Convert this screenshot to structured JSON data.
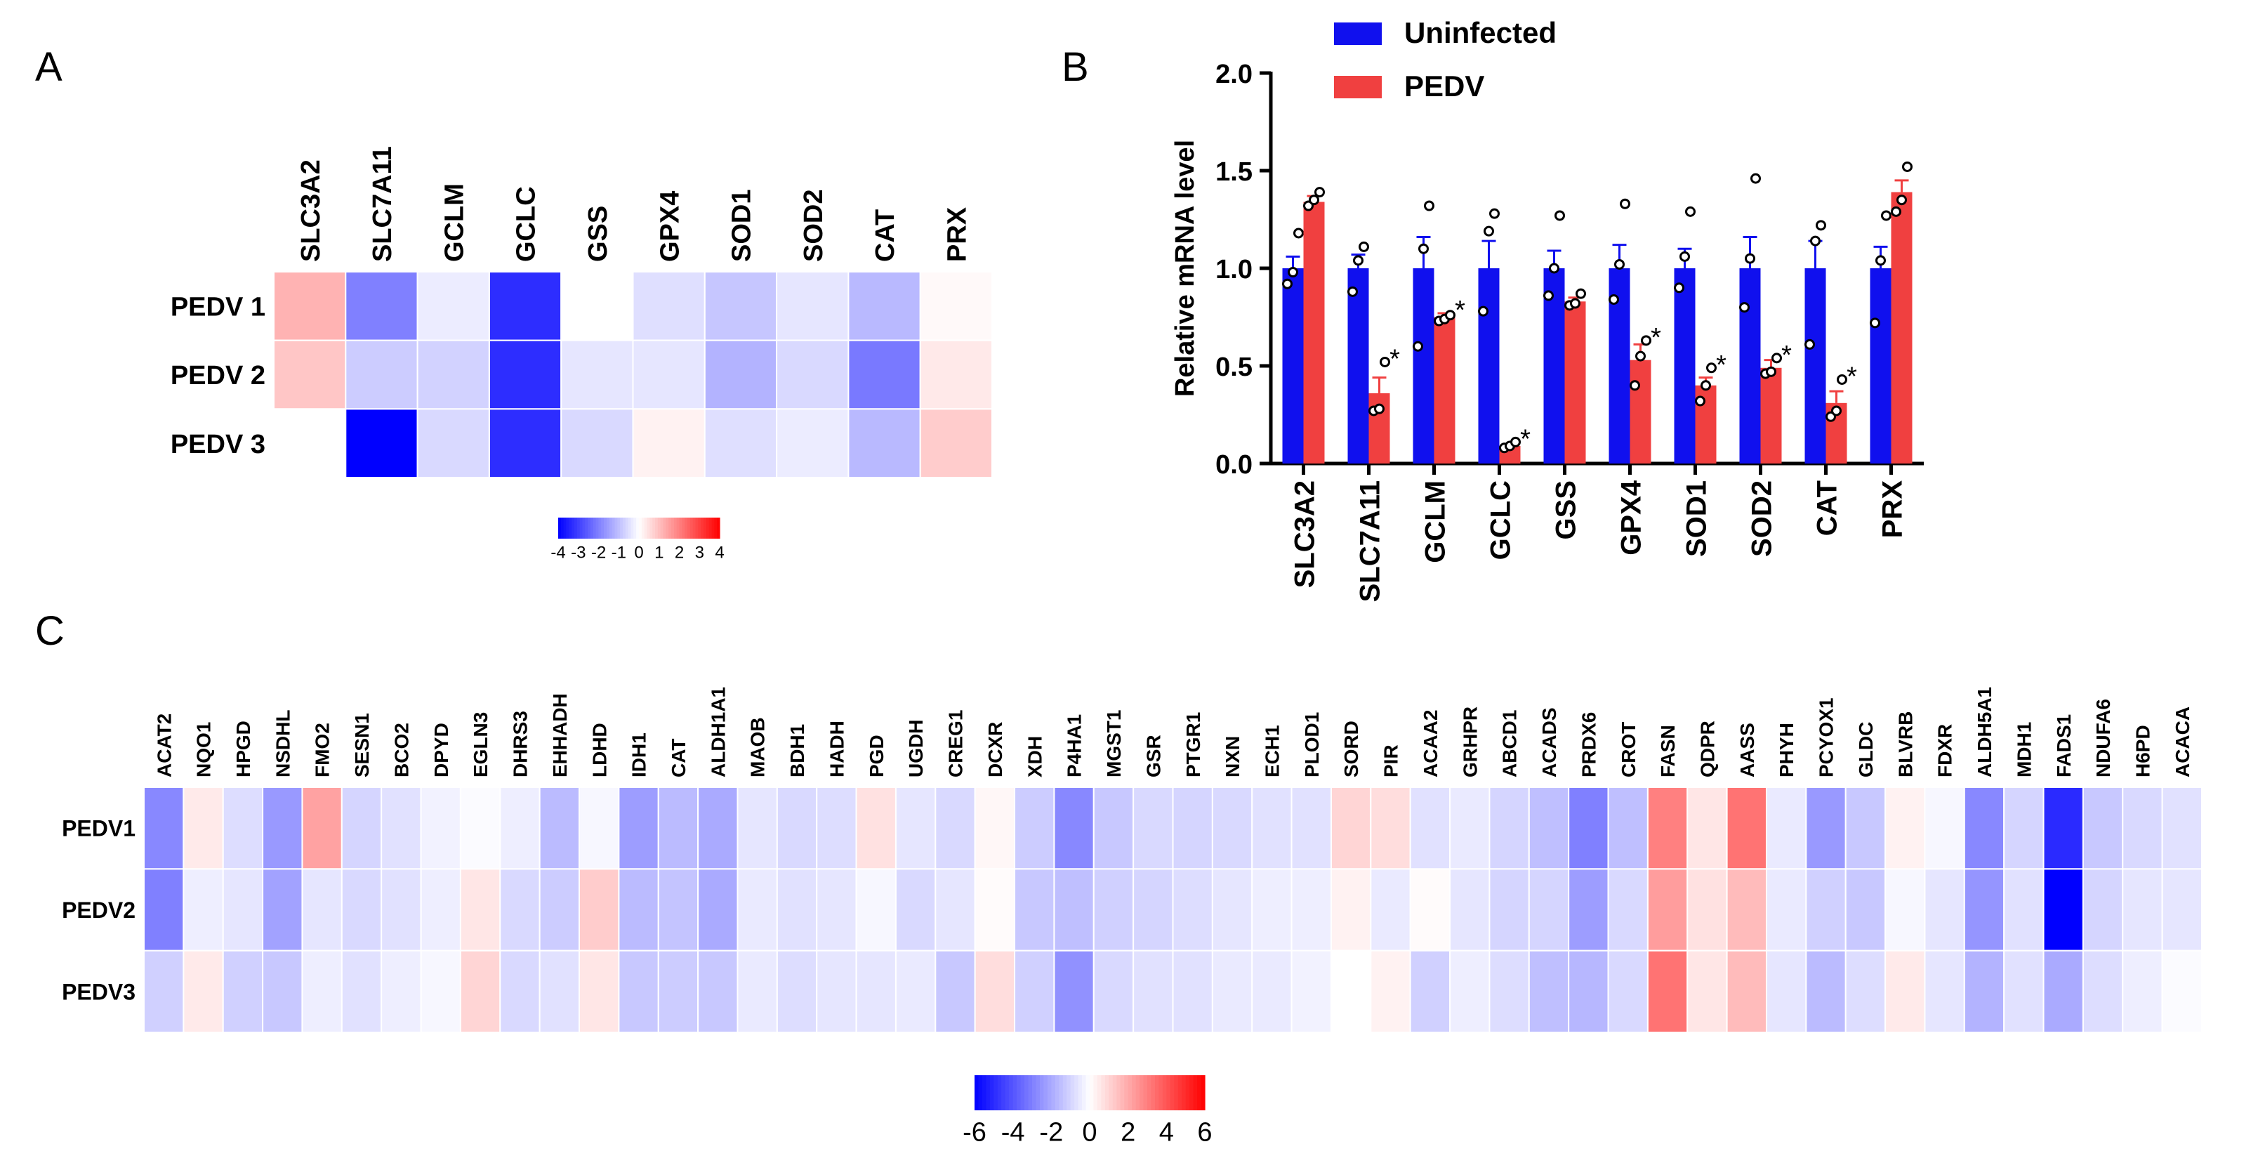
{
  "chart_data": [
    {
      "panel": "A",
      "type": "heatmap",
      "columns": [
        "SLC3A2",
        "SLC7A11",
        "GCLM",
        "GCLC",
        "GSS",
        "GPX4",
        "SOD1",
        "SOD2",
        "CAT",
        "PRX"
      ],
      "rows": [
        "PEDV 1",
        "PEDV 2",
        "PEDV 3"
      ],
      "values": [
        [
          1.2,
          -2.0,
          -0.3,
          -3.3,
          0.0,
          -0.5,
          -0.9,
          -0.4,
          -1.1,
          0.1
        ],
        [
          0.9,
          -0.8,
          -0.7,
          -3.3,
          -0.4,
          -0.4,
          -1.2,
          -0.6,
          -2.1,
          0.35
        ],
        [
          0.0,
          -4.0,
          -0.6,
          -3.3,
          -0.6,
          0.2,
          -0.5,
          -0.3,
          -1.1,
          0.8
        ]
      ],
      "colorbar": {
        "min": -4,
        "max": 4,
        "tick_labels": [
          "-4",
          "-3",
          "-2",
          "-1",
          "0",
          "1",
          "2",
          "3",
          "4"
        ]
      }
    },
    {
      "panel": "B",
      "type": "bar",
      "categories": [
        "SLC3A2",
        "SLC7A11",
        "GCLM",
        "GCLC",
        "GSS",
        "GPX4",
        "SOD1",
        "SOD2",
        "CAT",
        "PRX"
      ],
      "series": [
        {
          "name": "Uninfected",
          "color": "#1010ee",
          "values": [
            1.0,
            1.0,
            1.0,
            1.0,
            1.0,
            1.0,
            1.0,
            1.0,
            1.0,
            1.0
          ],
          "errors": [
            0.06,
            0.07,
            0.16,
            0.14,
            0.09,
            0.12,
            0.1,
            0.16,
            0.14,
            0.11
          ],
          "points": [
            [
              0.92,
              0.98,
              1.18
            ],
            [
              0.88,
              1.04,
              1.11
            ],
            [
              0.6,
              1.1,
              1.32
            ],
            [
              0.78,
              1.19,
              1.28
            ],
            [
              0.86,
              1.0,
              1.27
            ],
            [
              0.84,
              1.02,
              1.33
            ],
            [
              0.9,
              1.06,
              1.29
            ],
            [
              0.8,
              1.05,
              1.46
            ],
            [
              0.61,
              1.14,
              1.22
            ],
            [
              0.72,
              1.04,
              1.27
            ]
          ]
        },
        {
          "name": "PEDV",
          "color": "#f04040",
          "values": [
            1.34,
            0.36,
            0.75,
            0.09,
            0.83,
            0.53,
            0.4,
            0.49,
            0.31,
            1.39
          ],
          "errors": [
            0.03,
            0.08,
            0.02,
            0.01,
            0.02,
            0.08,
            0.04,
            0.04,
            0.06,
            0.06
          ],
          "points": [
            [
              1.32,
              1.35,
              1.39
            ],
            [
              0.27,
              0.28,
              0.52
            ],
            [
              0.73,
              0.74,
              0.76
            ],
            [
              0.08,
              0.09,
              0.11
            ],
            [
              0.81,
              0.82,
              0.87
            ],
            [
              0.4,
              0.55,
              0.63
            ],
            [
              0.32,
              0.4,
              0.49
            ],
            [
              0.46,
              0.47,
              0.54
            ],
            [
              0.24,
              0.27,
              0.43
            ],
            [
              1.29,
              1.35,
              1.52
            ]
          ]
        }
      ],
      "significance": [
        "",
        "*",
        "*",
        "*",
        "",
        "*",
        "*",
        "*",
        "*",
        ""
      ],
      "ylabel": "Relative mRNA level",
      "xlabel": "",
      "ylim": [
        0,
        2.0
      ],
      "yticks": [
        "0.0",
        "0.5",
        "1.0",
        "1.5",
        "2.0"
      ],
      "legend_position": "top"
    },
    {
      "panel": "C",
      "type": "heatmap",
      "columns": [
        "ACAT2",
        "NQO1",
        "HPGD",
        "NSDHL",
        "FMO2",
        "SESN1",
        "BCO2",
        "DPYD",
        "EGLN3",
        "DHRS3",
        "EHHADH",
        "LDHD",
        "IDH1",
        "CAT",
        "ALDH1A1",
        "MAOB",
        "BDH1",
        "HADH",
        "PGD",
        "UGDH",
        "CREG1",
        "DCXR",
        "XDH",
        "P4HA1",
        "MGST1",
        "GSR",
        "PTGR1",
        "NXN",
        "ECH1",
        "PLOD1",
        "SORD",
        "PIR",
        "ACAA2",
        "GRHPR",
        "ABCD1",
        "ACADS",
        "PRDX6",
        "CROT",
        "FASN",
        "QDPR",
        "AASS",
        "PHYH",
        "PCYOX1",
        "GLDC",
        "BLVRB",
        "FDXR",
        "ALDH5A1",
        "MDH1",
        "FADS1",
        "NDUFA6",
        "H6PD",
        "ACACA"
      ],
      "rows": [
        "PEDV1",
        "PEDV2",
        "PEDV3"
      ],
      "values": [
        [
          -2.8,
          0.5,
          -0.8,
          -2.4,
          2.2,
          -1.0,
          -0.7,
          -0.3,
          -0.1,
          -0.4,
          -1.6,
          -0.2,
          -2.3,
          -1.6,
          -2.0,
          -0.6,
          -0.9,
          -0.8,
          0.7,
          -0.6,
          -0.9,
          0.2,
          -1.2,
          -2.8,
          -1.3,
          -0.9,
          -1.0,
          -0.9,
          -0.7,
          -0.7,
          1.0,
          0.8,
          -0.7,
          -0.5,
          -1.0,
          -1.5,
          -3.0,
          -1.5,
          3.0,
          0.6,
          3.3,
          -0.5,
          -2.4,
          -1.3,
          0.3,
          -0.2,
          -2.8,
          -1.0,
          -5.0,
          -1.3,
          -0.9,
          -0.7
        ],
        [
          -3.0,
          -0.4,
          -0.6,
          -2.2,
          -0.6,
          -0.9,
          -0.7,
          -0.4,
          0.6,
          -0.9,
          -1.2,
          1.2,
          -1.6,
          -1.4,
          -2.0,
          -0.5,
          -0.7,
          -0.6,
          -0.2,
          -0.9,
          -0.6,
          0.1,
          -1.3,
          -1.5,
          -1.1,
          -1.0,
          -0.8,
          -0.6,
          -0.4,
          -0.4,
          0.3,
          -0.5,
          0.1,
          -0.6,
          -1.0,
          -1.0,
          -2.3,
          -0.9,
          2.3,
          0.7,
          1.6,
          -0.5,
          -1.1,
          -1.3,
          -0.2,
          -0.6,
          -2.5,
          -0.7,
          -6.0,
          -1.0,
          -0.6,
          -0.6
        ],
        [
          -1.1,
          0.5,
          -1.1,
          -1.3,
          -0.4,
          -0.7,
          -0.4,
          -0.2,
          1.0,
          -0.9,
          -0.7,
          0.6,
          -1.3,
          -1.2,
          -1.3,
          -0.5,
          -0.8,
          -0.6,
          -0.6,
          -0.5,
          -1.3,
          0.8,
          -1.1,
          -2.6,
          -0.9,
          -0.7,
          -0.7,
          -0.5,
          -0.5,
          -0.3,
          0.0,
          0.3,
          -1.1,
          -0.4,
          -0.8,
          -1.5,
          -1.7,
          -0.9,
          3.3,
          0.6,
          1.6,
          -0.6,
          -1.6,
          -0.8,
          0.5,
          -0.6,
          -1.8,
          -0.7,
          -2.0,
          -0.8,
          -0.4,
          -0.1
        ]
      ],
      "colorbar": {
        "min": -6,
        "max": 6,
        "tick_labels": [
          "-6",
          "-4",
          "-2",
          "0",
          "2",
          "4",
          "6"
        ]
      }
    }
  ],
  "panel_labels": {
    "a": "A",
    "b": "B",
    "c": "C"
  }
}
